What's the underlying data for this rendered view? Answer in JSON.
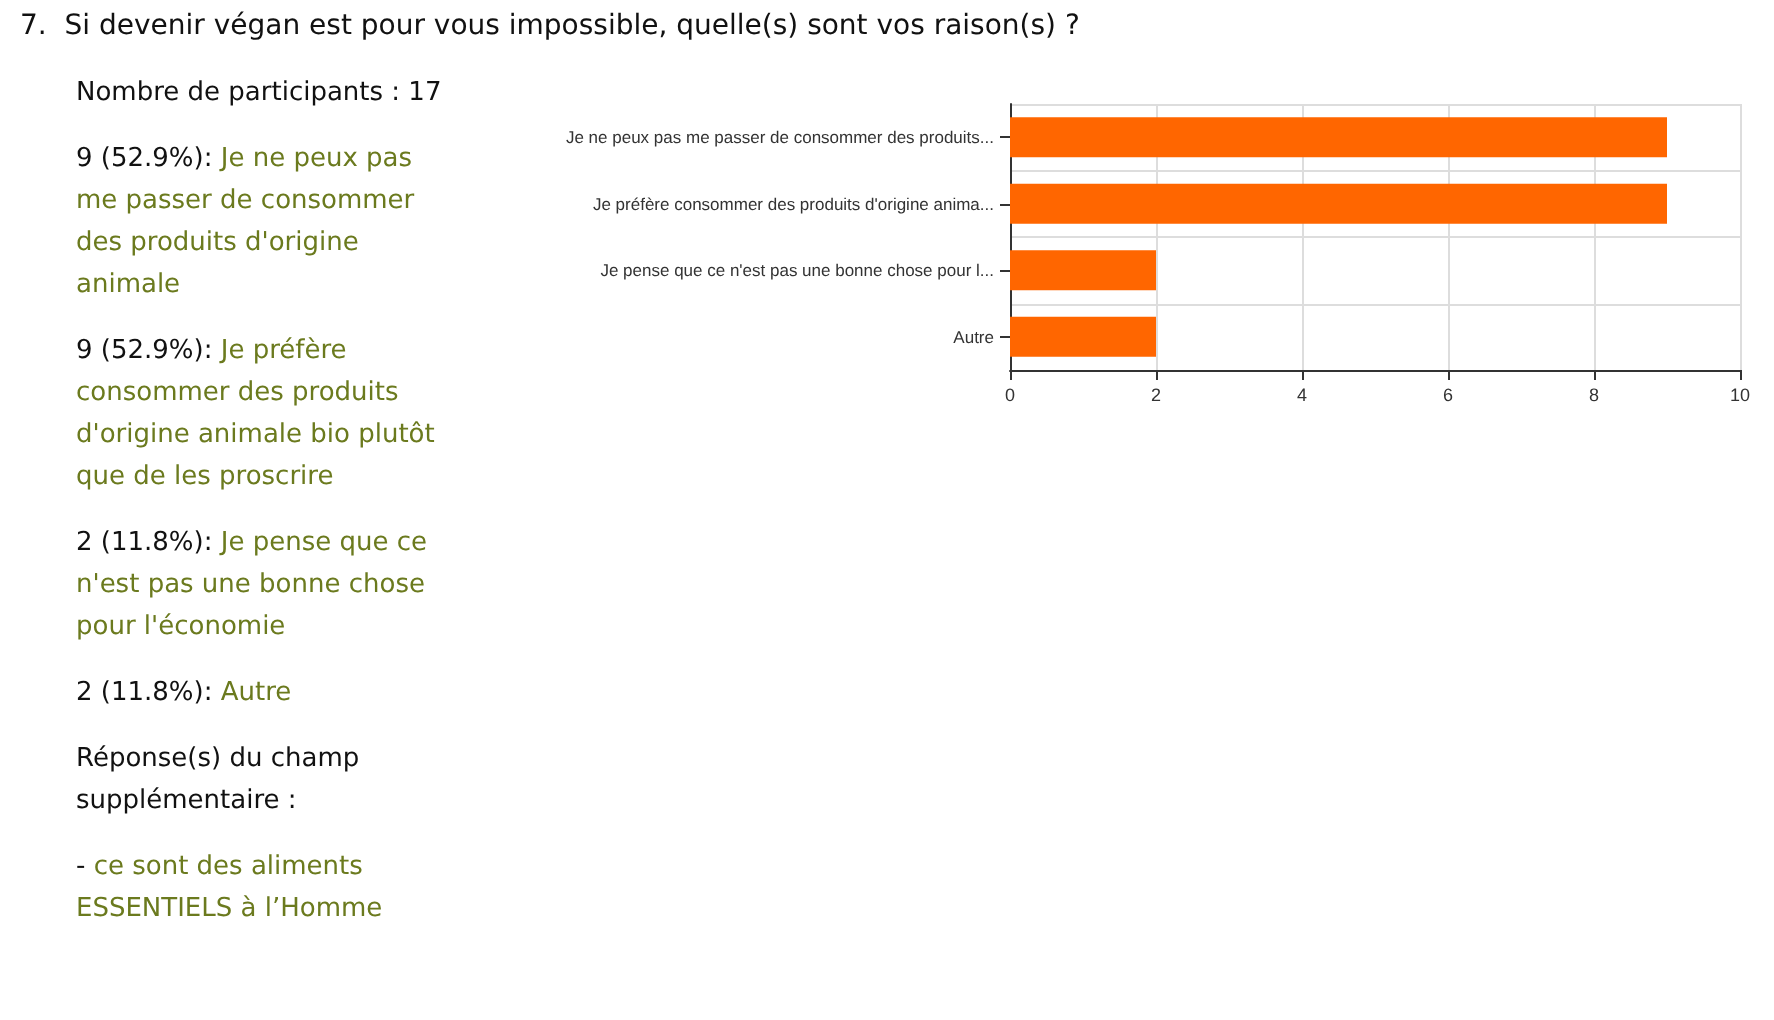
{
  "chart_data": {
    "type": "bar",
    "orientation": "horizontal",
    "title": "7.  Si devenir végan est pour vous impossible, quelle(s) sont vos raison(s) ?",
    "categories": [
      "Je ne peux pas me passer de consommer des produits...",
      "Je préfère consommer des produits d'origine anima...",
      "Je pense que ce n'est pas une bonne chose pour l...",
      "Autre"
    ],
    "values": [
      9,
      9,
      2,
      2
    ],
    "color": "#ff6600",
    "xlim": [
      0,
      10
    ],
    "xticks": [
      0,
      2,
      4,
      6,
      8,
      10
    ],
    "grid": true,
    "annotations": [
      "Nombre de participants : 17",
      "9 (52.9%): Je ne peux pas me passer de consommer des produits d'origine animale",
      "9 (52.9%): Je préfère consommer des produits d'origine animale bio plutôt que de les proscrire",
      "2 (11.8%): Je pense que ce n'est pas une bonne chose pour l'économie",
      "2 (11.8%): Autre",
      "Réponse(s) du champ supplémentaire :",
      "- ce sont des aliments ESSENTIELS à l’Homme"
    ]
  }
}
